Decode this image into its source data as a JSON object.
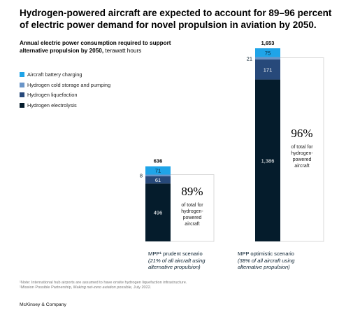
{
  "headline": "Hydrogen-powered aircraft are expected to account for 89–96 percent of electric power demand for novel propulsion in aviation by 2050.",
  "subtitle_bold": "Annual electric power consumption required to support alternative propulsion by 2050,",
  "subtitle_unit": " terawatt hours",
  "legend": [
    {
      "label": "Aircraft battery charging",
      "color": "#1fa4e8"
    },
    {
      "label": "Hydrogen cold storage and pumping",
      "color": "#6a95c8"
    },
    {
      "label": "Hydrogen liquefaction",
      "color": "#27497a"
    },
    {
      "label": "Hydrogen electrolysis",
      "color": "#051c2c"
    }
  ],
  "scenarios": {
    "prudent": {
      "title": "MPP¹ prudent scenario",
      "sub": "(21% of all aircraft using alternative propulsion)"
    },
    "optimistic": {
      "title": "MPP optimistic scenario",
      "sub": "(38% of all aircraft using alternative propulsion)"
    }
  },
  "note_line1": "¹Note: International hub airports are assumed to have onsite hydrogen liquefaction infrastructure.",
  "note_line2_pre": "¹Mission Possible Partnership, ",
  "note_line2_it": "Making net-zero aviation possible",
  "note_line2_post": ", July 2022.",
  "brand": "McKinsey & Company",
  "chart_data": {
    "type": "bar",
    "stacked": true,
    "categories": [
      "MPP¹ prudent scenario",
      "MPP optimistic scenario"
    ],
    "series": [
      {
        "name": "Hydrogen electrolysis",
        "values": [
          496,
          1386
        ]
      },
      {
        "name": "Hydrogen liquefaction",
        "values": [
          61,
          171
        ]
      },
      {
        "name": "Hydrogen cold storage and pumping",
        "values": [
          8,
          21
        ]
      },
      {
        "name": "Aircraft battery charging",
        "values": [
          71,
          75
        ]
      }
    ],
    "totals": [
      "636",
      "1,653"
    ],
    "segment_labels": [
      [
        "496",
        "61",
        "8",
        "71"
      ],
      [
        "1,386",
        "171",
        "21",
        "75"
      ]
    ],
    "hydrogen_share": [
      {
        "value": "89%",
        "text": [
          "of total for",
          "hydrogen-",
          "powered",
          "aircraft"
        ]
      },
      {
        "value": "96%",
        "text": [
          "of total for",
          "hydrogen-",
          "powered",
          "aircraft"
        ]
      }
    ],
    "ylim": [
      0,
      1653
    ]
  }
}
